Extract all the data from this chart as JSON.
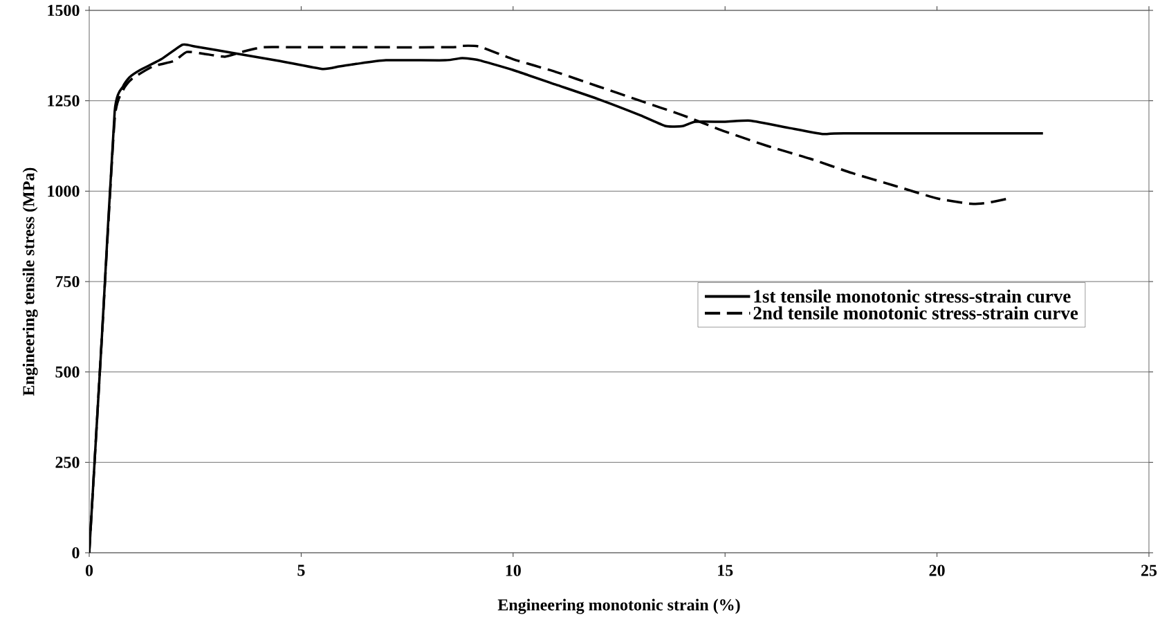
{
  "chart_data": {
    "type": "line",
    "xlabel": "Engineering monotonic strain (%)",
    "ylabel": "Engineering tensile stress (MPa)",
    "xlim": [
      0,
      25
    ],
    "ylim": [
      0,
      1500
    ],
    "xticks": [
      0,
      5,
      10,
      15,
      20,
      25
    ],
    "yticks": [
      0,
      250,
      500,
      750,
      1000,
      1250,
      1500
    ],
    "grid": "y",
    "legend": "right",
    "marker": "none",
    "series": [
      {
        "name": "1st tensile monotonic  stress-strain curve",
        "color": "#000000",
        "line_style": "solid",
        "x": [
          0,
          0.3,
          0.6,
          0.8,
          0.95,
          1.2,
          1.7,
          2.2,
          2.5,
          3.5,
          4.5,
          5.5,
          5.9,
          6.3,
          7,
          8.4,
          8.8,
          9.2,
          10,
          11,
          12,
          13,
          13.6,
          14,
          14.3,
          15,
          15.6,
          16.5,
          17.3,
          17.8,
          22.5
        ],
        "values": [
          0,
          600,
          1220,
          1290,
          1315,
          1335,
          1365,
          1405,
          1400,
          1380,
          1360,
          1338,
          1345,
          1352,
          1362,
          1362,
          1368,
          1362,
          1335,
          1295,
          1255,
          1210,
          1180,
          1180,
          1192,
          1192,
          1195,
          1175,
          1158,
          1160,
          1160
        ]
      },
      {
        "name": "2nd tensile monotonic  stress-strain curve",
        "color": "#000000",
        "line_style": "dashed",
        "x": [
          0,
          0.3,
          0.6,
          0.8,
          1.0,
          1.5,
          2.0,
          2.3,
          2.7,
          3.2,
          3.6,
          4.1,
          5,
          8.5,
          8.8,
          9.2,
          10,
          11,
          12,
          13,
          14,
          15,
          16,
          17,
          18,
          19,
          20,
          20.8,
          21.2,
          21.7
        ],
        "values": [
          0,
          600,
          1200,
          1280,
          1310,
          1345,
          1360,
          1385,
          1380,
          1372,
          1385,
          1398,
          1398,
          1398,
          1402,
          1400,
          1365,
          1330,
          1290,
          1250,
          1210,
          1165,
          1125,
          1090,
          1050,
          1015,
          980,
          965,
          968,
          980
        ]
      }
    ]
  }
}
